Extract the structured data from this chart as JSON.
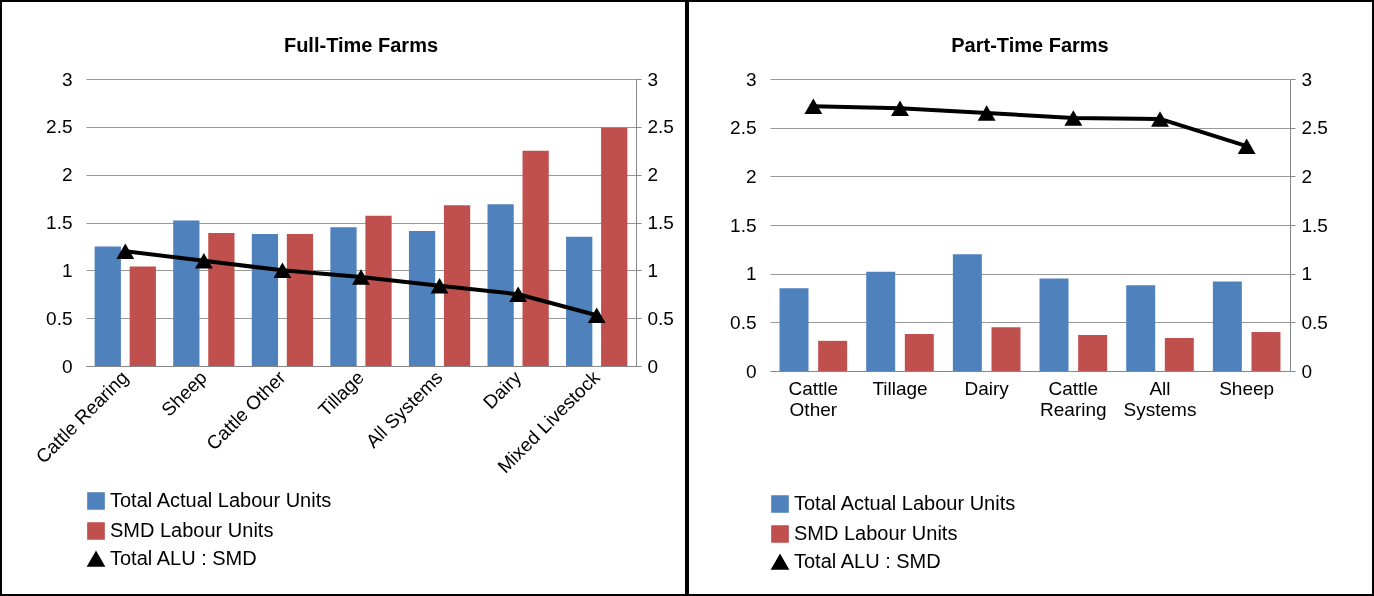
{
  "chart_data": [
    {
      "type": "bar",
      "title": "Full-Time Farms",
      "categories": [
        "Cattle Rearing",
        "Sheep",
        "Cattle Other",
        "Tillage",
        "All Systems",
        "Dairy",
        "Mixed Livestock"
      ],
      "series": [
        {
          "name": "Total Actual Labour Units",
          "color": "#4f81bd",
          "values": [
            1.25,
            1.52,
            1.38,
            1.45,
            1.41,
            1.69,
            1.35
          ]
        },
        {
          "name": "SMD Labour Units",
          "color": "#c0504d",
          "values": [
            1.04,
            1.39,
            1.38,
            1.57,
            1.68,
            2.25,
            2.49
          ]
        },
        {
          "name": "Total ALU : SMD",
          "type": "line",
          "axis": "y2",
          "color": "#000000",
          "values": [
            1.2,
            1.1,
            1.0,
            0.93,
            0.84,
            0.75,
            0.53
          ]
        }
      ],
      "ylim": [
        0,
        3
      ],
      "yticks": [
        0,
        0.5,
        1,
        1.5,
        2,
        2.5,
        3
      ],
      "y2lim": [
        0,
        3
      ],
      "y2ticks": [
        0,
        0.5,
        1,
        1.5,
        2,
        2.5,
        3
      ],
      "grid": "y",
      "legend": "bottom",
      "marker": "triangle"
    },
    {
      "type": "bar",
      "title": "Part-Time Farms",
      "categories": [
        "Cattle Other",
        "Tillage",
        "Dairy",
        "Cattle Rearing",
        "All Systems",
        "Sheep"
      ],
      "series": [
        {
          "name": "Total Actual Labour Units",
          "color": "#4f81bd",
          "values": [
            0.85,
            1.02,
            1.2,
            0.95,
            0.88,
            0.92
          ]
        },
        {
          "name": "SMD Labour Units",
          "color": "#c0504d",
          "values": [
            0.31,
            0.38,
            0.45,
            0.37,
            0.34,
            0.4
          ]
        },
        {
          "name": "Total ALU : SMD",
          "type": "line",
          "axis": "y2",
          "color": "#000000",
          "values": [
            2.72,
            2.7,
            2.65,
            2.6,
            2.59,
            2.31
          ]
        }
      ],
      "ylim": [
        0,
        3
      ],
      "yticks": [
        0,
        0.5,
        1,
        1.5,
        2,
        2.5,
        3
      ],
      "y2lim": [
        0,
        3
      ],
      "y2ticks": [
        0,
        0.5,
        1,
        1.5,
        2,
        2.5,
        3
      ],
      "grid": "y",
      "legend": "bottom",
      "marker": "triangle"
    }
  ]
}
